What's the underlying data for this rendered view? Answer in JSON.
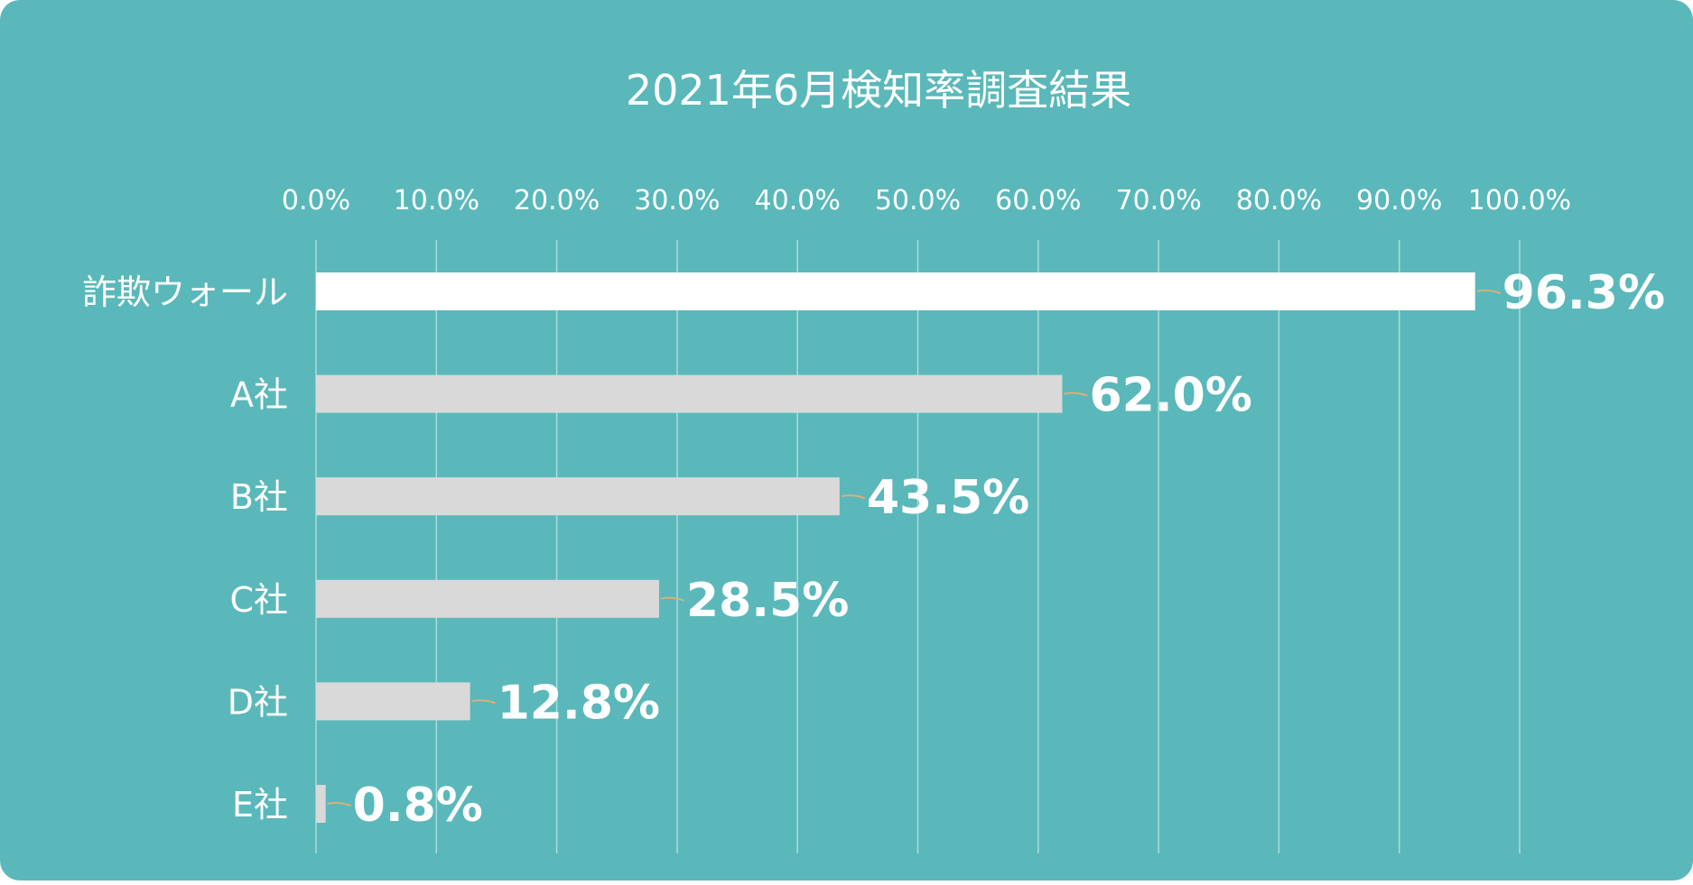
{
  "chart_data": {
    "type": "bar",
    "orientation": "horizontal",
    "title": "2021年6月検知率調査結果",
    "categories": [
      "詐欺ウォール",
      "A社",
      "B社",
      "C社",
      "D社",
      "E社"
    ],
    "values": [
      96.3,
      62.0,
      43.5,
      28.5,
      12.8,
      0.8
    ],
    "value_labels": [
      "96.3%",
      "62.0%",
      "43.5%",
      "28.5%",
      "12.8%",
      "0.8%"
    ],
    "x_ticks": [
      "0.0%",
      "10.0%",
      "20.0%",
      "30.0%",
      "40.0%",
      "50.0%",
      "60.0%",
      "70.0%",
      "80.0%",
      "90.0%",
      "100.0%"
    ],
    "xlim": [
      0,
      100
    ],
    "x_axis_position": "top",
    "grid": true,
    "colors": {
      "background": "#5ab8ba",
      "highlight_bar": "#ffffff",
      "bar": "#d9d9d9",
      "grid": "#a9dcdc",
      "leader": "#d8b07a",
      "text": "#ffffff"
    }
  }
}
